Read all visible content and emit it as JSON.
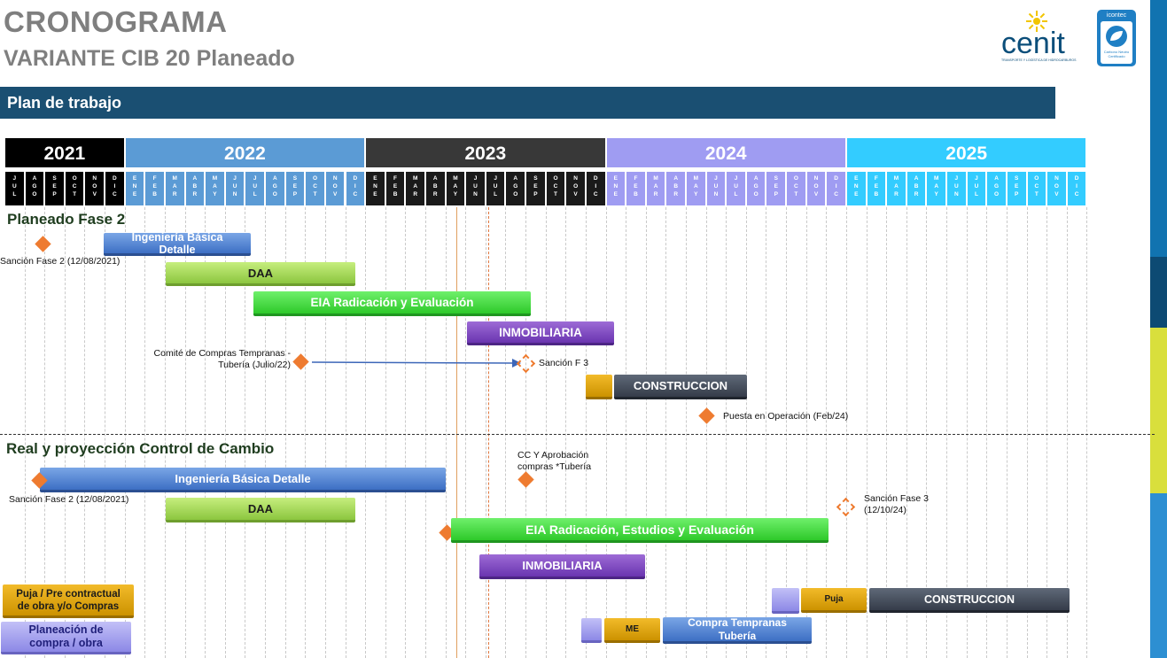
{
  "header": {
    "title": "CRONOGRAMA",
    "subtitle": "VARIANTE CIB 20 Planeado",
    "banner": "Plan de trabajo"
  },
  "logos": {
    "cenit": "cenit",
    "cenit_tagline": "TRANSPORTE Y LOGÍSTICA DE HIDROCARBUROS",
    "icontec": "icontec",
    "icontec_badge": "Carbono Neutro Certificado"
  },
  "colors": {
    "banner": "#1a4f72",
    "y2021": "#000000",
    "y2022": "#5b9bd5",
    "y2023": "#383838",
    "y2024": "#9f9cf2",
    "y2025": "#33ccff"
  },
  "timeline": {
    "years": [
      {
        "label": "2021",
        "months": [
          "JUL",
          "AGO",
          "SEP",
          "OCT",
          "NOV",
          "DIC"
        ]
      },
      {
        "label": "2022",
        "months": [
          "ENE",
          "FEB",
          "MAR",
          "ABR",
          "MAY",
          "JUN",
          "JUL",
          "AGO",
          "SEP",
          "OCT",
          "NOV",
          "DIC"
        ]
      },
      {
        "label": "2023",
        "months": [
          "ENE",
          "FEB",
          "MAR",
          "ABR",
          "MAY",
          "JUN",
          "JUL",
          "AGO",
          "SEP",
          "OCT",
          "NOV",
          "DIC"
        ]
      },
      {
        "label": "2024",
        "months": [
          "ENE",
          "FEB",
          "MAR",
          "ABR",
          "MAY",
          "JUN",
          "JUL",
          "AGO",
          "SEP",
          "OCT",
          "NOV",
          "DIC"
        ]
      },
      {
        "label": "2025",
        "months": [
          "ENE",
          "FEB",
          "MAR",
          "ABR",
          "MAY",
          "JUN",
          "JUL",
          "AGO",
          "SEP",
          "OCT",
          "NOV",
          "DIC"
        ]
      }
    ]
  },
  "planned": {
    "label": "Planeado Fase 2",
    "sancion": "Sanción Fase 2  (12/08/2021)",
    "ingenieria": "Ingeniería  Básica Detalle",
    "daa": "DAA",
    "eia": "EIA Radicación y Evaluación",
    "inmobiliaria": "INMOBILIARIA",
    "comite": "Comité de Compras Tempranas - Tubería (Julio/22)",
    "sancion_f3": "Sanción F 3",
    "construccion": "CONSTRUCCION",
    "puesta": "Puesta en Operación (Feb/24)"
  },
  "real": {
    "label": "Real y proyección Control de Cambio",
    "ingenieria": "Ingeniería  Básica Detalle",
    "sancion": "Sanción Fase 2  (12/08/2021)",
    "cc_aprobacion": "CC Y Aprobación compras *Tubería",
    "daa": "DAA",
    "sancion_f3": "Sanción Fase 3 (12/10/24)",
    "eia": "EIA Radicación, Estudios  y Evaluación",
    "inmobiliaria": "INMOBILIARIA",
    "puja": "Puja",
    "construccion": "CONSTRUCCION",
    "me": "ME",
    "compra_temprana": "Compra Tempranas Tubería"
  },
  "legend": {
    "puja": "Puja / Pre contractual de obra  y/o Compras",
    "planeacion": "Planeación de compra / obra"
  }
}
